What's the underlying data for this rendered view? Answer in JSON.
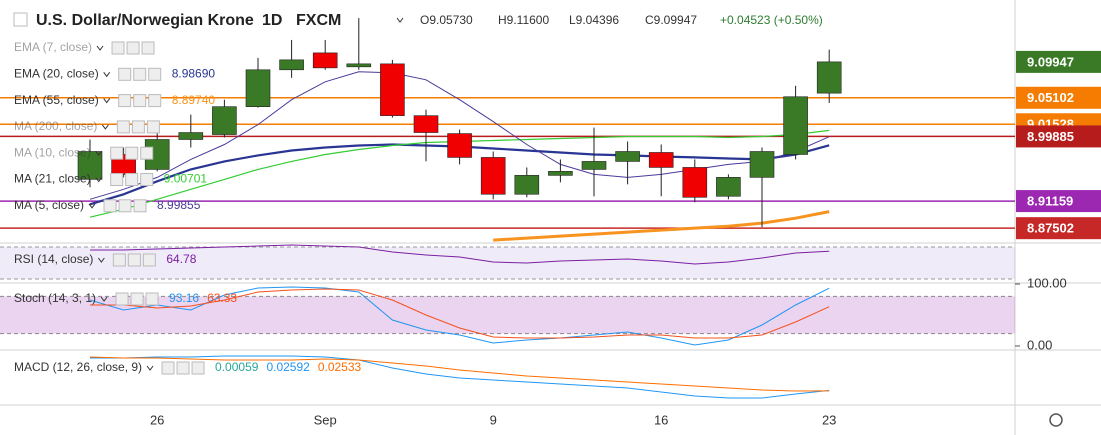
{
  "chart_data": {
    "type": "candlestick",
    "title": "U.S. Dollar/Norwegian Krone",
    "interval": "1D",
    "source": "FXCM",
    "ohlc_header": [
      "O9.05730",
      "H9.11600",
      "L9.04396",
      "C9.09947",
      "+0.04523 (+0.50%)"
    ],
    "categories": [
      null,
      null,
      "26",
      null,
      null,
      null,
      null,
      "Sep",
      null,
      null,
      null,
      null,
      "9",
      null,
      null,
      null,
      null,
      "16",
      null,
      null,
      null,
      null,
      "23"
    ],
    "open": [
      8.9409,
      8.9745,
      8.9543,
      8.9947,
      9.0014,
      9.039,
      9.0888,
      9.1116,
      9.0928,
      9.0968,
      9.0269,
      9.0027,
      8.9705,
      8.9208,
      8.9463,
      8.9543,
      8.9651,
      8.9772,
      8.957,
      8.9181,
      8.9436,
      8.9745,
      9.0573
    ],
    "high": [
      8.9947,
      8.9839,
      9.0121,
      9.0283,
      9.0484,
      9.1049,
      9.1291,
      9.1291,
      9.1586,
      9.1022,
      9.035,
      9.0081,
      8.9785,
      8.957,
      8.9678,
      9.0108,
      8.992,
      8.988,
      8.9678,
      8.9476,
      8.9839,
      9.0672,
      9.116
    ],
    "low": [
      8.9302,
      8.9436,
      8.9517,
      8.9839,
      8.9974,
      9.0377,
      9.078,
      9.0888,
      9.0888,
      9.0243,
      8.9651,
      8.9611,
      8.914,
      8.9167,
      8.9369,
      8.9181,
      8.9342,
      8.9181,
      8.91,
      8.914,
      8.8764,
      8.9678,
      9.04396
    ],
    "close": [
      8.9785,
      8.9476,
      8.9947,
      9.0041,
      9.039,
      9.0888,
      9.1022,
      9.0914,
      9.0968,
      9.0269,
      9.0041,
      8.9705,
      8.9208,
      8.9463,
      8.9517,
      8.9651,
      8.9785,
      8.957,
      8.9167,
      8.9436,
      8.9785,
      9.0524,
      9.09947
    ],
    "up_color": "#3a7a26",
    "down_color": "#f00000",
    "ylim": [
      8.855,
      9.183
    ],
    "overlays": [
      {
        "name": "EMA (7, close)",
        "hidden": true
      },
      {
        "name": "EMA (20, close)",
        "value_label": "8.98690",
        "color": "#283593",
        "width": 2.2,
        "values": [
          8.9073,
          8.9208,
          8.9383,
          8.9543,
          8.9651,
          8.9732,
          8.9799,
          8.9839,
          8.9866,
          8.988,
          8.9866,
          8.9853,
          8.9826,
          8.9799,
          8.9772,
          8.9745,
          8.9732,
          8.9718,
          8.9705,
          8.9691,
          8.9678,
          8.9745,
          8.9869
        ]
      },
      {
        "name": "EMA (55, close)",
        "value_label": "8.89740",
        "color": "#f7931e",
        "width": 3,
        "values": [
          null,
          null,
          null,
          null,
          null,
          null,
          null,
          null,
          null,
          null,
          null,
          null,
          8.8589,
          8.8616,
          8.8643,
          8.867,
          8.8697,
          8.8724,
          8.8751,
          8.8777,
          8.8818,
          8.8885,
          8.8974
        ]
      },
      {
        "name": "MA (200, close)",
        "hidden": true
      },
      {
        "name": "MA (10, close)",
        "hidden": true
      },
      {
        "name": "MA (21, close)",
        "value_label": "9.00701",
        "color": "#33cc33",
        "width": 1.2,
        "values": [
          8.8898,
          8.9006,
          8.914,
          8.9275,
          8.9409,
          8.9543,
          8.9651,
          8.9745,
          8.9812,
          8.9866,
          8.9907,
          8.992,
          8.9933,
          8.9947,
          8.996,
          8.9974,
          8.9987,
          8.9987,
          8.9987,
          8.9974,
          8.9987,
          9.0014,
          9.007
        ]
      },
      {
        "name": "MA (5, close)",
        "value_label": "8.99855",
        "color": "#4a3a9a",
        "width": 1,
        "values": [
          8.914,
          8.9275,
          8.9436,
          8.9678,
          8.988,
          9.0148,
          9.0484,
          9.0726,
          9.0861,
          9.0847,
          9.0753,
          9.0484,
          9.0189,
          8.988,
          8.9611,
          8.9476,
          8.9436,
          8.9476,
          8.9543,
          8.9611,
          8.9651,
          8.9785,
          8.99855
        ]
      }
    ],
    "price_lines": [
      {
        "value": 9.09947,
        "color": "#3a7a26",
        "line": false
      },
      {
        "value": 9.05102,
        "color": "#f57c00",
        "line": true
      },
      {
        "value": 9.01528,
        "color": "#f57c00",
        "line": true
      },
      {
        "value": 8.99885,
        "color": "#b71c1c",
        "line": true
      },
      {
        "value": 8.91159,
        "color": "#9c27b0",
        "line": true
      },
      {
        "value": 8.87502,
        "color": "#c62828",
        "line": true
      }
    ],
    "rsi": {
      "name": "RSI (14, close)",
      "value_label": "64.78",
      "color": "#7b1fa2",
      "ylim": [
        25,
        75
      ],
      "band": [
        30,
        70
      ],
      "values": [
        66.25,
        66.25,
        67.5,
        68.75,
        70,
        71.25,
        72.5,
        71.25,
        70,
        63.75,
        60,
        57.5,
        51.25,
        50,
        52.5,
        53.75,
        55,
        52.5,
        48.75,
        51.25,
        56.25,
        62.5,
        64.78
      ]
    },
    "stoch": {
      "name": "Stoch (14, 3, 1)",
      "ylim": [
        -6.5,
        101.6
      ],
      "band": [
        20,
        80
      ],
      "yticks": [
        {
          "value": 100,
          "label": "100.00"
        },
        {
          "value": 0,
          "label": "0.00"
        }
      ],
      "series": [
        {
          "value_label": "93.16",
          "color": "#2196f3",
          "values": [
            74.2,
            58.1,
            66.1,
            58.1,
            82.3,
            93.5,
            95.2,
            93.5,
            87.1,
            41.9,
            25.8,
            17.7,
            4.8,
            9.7,
            12.9,
            17.7,
            22.6,
            12.9,
            1.6,
            9.7,
            33.9,
            66.1,
            93.16
          ]
        },
        {
          "value_label": "63.33",
          "color": "#f4511e",
          "values": [
            66.1,
            66.1,
            61.3,
            64.5,
            74.2,
            87.1,
            90.3,
            91.9,
            90.3,
            74.2,
            50,
            29,
            14.5,
            12.9,
            12.9,
            14.5,
            17.7,
            17.7,
            12.9,
            12.9,
            17.7,
            38.7,
            63.33
          ]
        }
      ]
    },
    "macd": {
      "name": "MACD (12, 26, close, 9)",
      "ylim": [
        0.01,
        0.07
      ],
      "histogram_label": "0.00059",
      "histogram_color": "#26a69a",
      "series": [
        {
          "value_label": "0.02592",
          "color": "#2196f3",
          "values": [
            0.0613,
            0.0613,
            0.0624,
            0.0624,
            0.0635,
            0.0635,
            0.0635,
            0.0624,
            0.0591,
            0.0504,
            0.0438,
            0.0395,
            0.0373,
            0.0351,
            0.0329,
            0.0307,
            0.0285,
            0.0242,
            0.0198,
            0.0176,
            0.0176,
            0.022,
            0.02592
          ]
        },
        {
          "value_label": "0.02533",
          "color": "#ff6d00",
          "values": [
            0.0624,
            0.0613,
            0.0613,
            0.0602,
            0.0591,
            0.0591,
            0.0591,
            0.0602,
            0.0591,
            0.0558,
            0.0525,
            0.0482,
            0.0449,
            0.0416,
            0.0395,
            0.0373,
            0.0351,
            0.0329,
            0.0307,
            0.0285,
            0.0264,
            0.0253,
            0.02533
          ]
        }
      ]
    }
  }
}
